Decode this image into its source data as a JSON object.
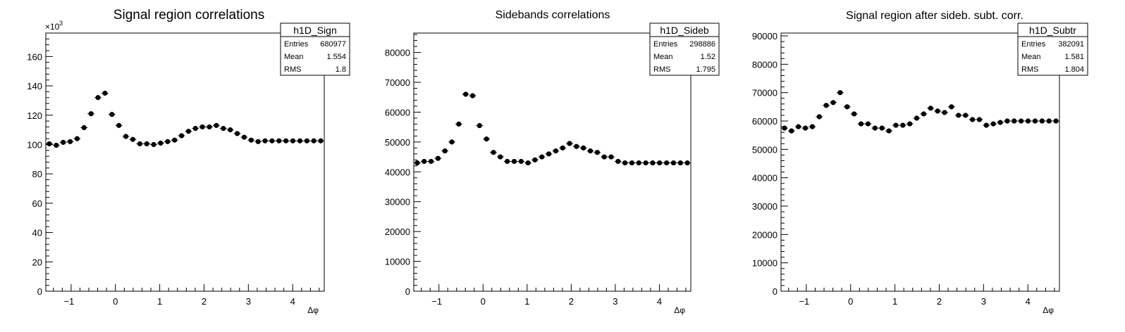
{
  "chart_data": [
    {
      "type": "scatter",
      "title": "Signal region correlations",
      "xlabel": "Δφ",
      "ylabel": "",
      "xlim": [
        -1.5708,
        4.7124
      ],
      "ylim": [
        0,
        176
      ],
      "y_exponent_label": "×10",
      "y_exponent": "3",
      "yticks": [
        0,
        20,
        40,
        60,
        80,
        100,
        120,
        140,
        160
      ],
      "xticks": [
        -1,
        0,
        1,
        2,
        3,
        4
      ],
      "grid": false,
      "stats": {
        "name": "h1D_Sign",
        "rows": [
          {
            "label": "Entries",
            "value": "680977"
          },
          {
            "label": "Mean",
            "value": "1.554"
          },
          {
            "label": "RMS",
            "value": "1.8"
          }
        ]
      },
      "series": [
        {
          "x": [
            -1.492,
            -1.335,
            -1.178,
            -1.021,
            -0.864,
            -0.707,
            -0.55,
            -0.393,
            -0.236,
            -0.079,
            0.079,
            0.236,
            0.393,
            0.55,
            0.707,
            0.864,
            1.021,
            1.178,
            1.335,
            1.492,
            1.649,
            1.806,
            1.963,
            2.12,
            2.277,
            2.435,
            2.592,
            2.749,
            2.906,
            3.063,
            3.22,
            3.377,
            3.534,
            3.691,
            3.848,
            4.005,
            4.163,
            4.32,
            4.477,
            4.634
          ],
          "values": [
            100.5,
            99.5,
            101.5,
            102,
            104,
            111.5,
            121,
            132,
            135,
            120.5,
            113,
            105.5,
            103.5,
            100.5,
            100.5,
            100,
            101,
            102,
            103,
            106,
            109,
            111,
            112,
            112,
            113,
            111,
            110,
            107.5,
            105,
            103,
            102,
            102.5,
            102.5,
            102.5,
            102.5,
            102.5,
            102.5,
            102.5,
            102.5,
            102.5
          ]
        }
      ]
    },
    {
      "type": "scatter",
      "title": "Sidebands correlations",
      "xlabel": "Δφ",
      "ylabel": "",
      "xlim": [
        -1.5708,
        4.7124
      ],
      "ylim": [
        0,
        86500
      ],
      "yticks": [
        0,
        10000,
        20000,
        30000,
        40000,
        50000,
        60000,
        70000,
        80000
      ],
      "xticks": [
        -1,
        0,
        1,
        2,
        3,
        4
      ],
      "grid": false,
      "stats": {
        "name": "h1D_Sideb",
        "rows": [
          {
            "label": "Entries",
            "value": "298886"
          },
          {
            "label": "Mean",
            "value": "1.52"
          },
          {
            "label": "RMS",
            "value": "1.795"
          }
        ]
      },
      "series": [
        {
          "x": [
            -1.492,
            -1.335,
            -1.178,
            -1.021,
            -0.864,
            -0.707,
            -0.55,
            -0.393,
            -0.236,
            -0.079,
            0.079,
            0.236,
            0.393,
            0.55,
            0.707,
            0.864,
            1.021,
            1.178,
            1.335,
            1.492,
            1.649,
            1.806,
            1.963,
            2.12,
            2.277,
            2.435,
            2.592,
            2.749,
            2.906,
            3.063,
            3.22,
            3.377,
            3.534,
            3.691,
            3.848,
            4.005,
            4.163,
            4.32,
            4.477,
            4.634
          ],
          "values": [
            43000,
            43500,
            43500,
            44500,
            47000,
            50000,
            56000,
            66000,
            65500,
            55500,
            51000,
            46500,
            45000,
            43500,
            43500,
            43500,
            43000,
            44000,
            45000,
            46000,
            47000,
            48000,
            49500,
            48500,
            48000,
            47000,
            46500,
            45000,
            45000,
            43500,
            43000,
            43000,
            43000,
            43000,
            43000,
            43000,
            43000,
            43000,
            43000,
            43000
          ]
        }
      ]
    },
    {
      "type": "scatter",
      "title": "Signal region after sideb. subt. corr.",
      "xlabel": "Δφ",
      "ylabel": "",
      "xlim": [
        -1.5708,
        4.7124
      ],
      "ylim": [
        0,
        91000
      ],
      "yticks": [
        0,
        10000,
        20000,
        30000,
        40000,
        50000,
        60000,
        70000,
        80000,
        90000
      ],
      "xticks": [
        -1,
        0,
        1,
        2,
        3,
        4
      ],
      "grid": false,
      "stats": {
        "name": "h1D_Subtr",
        "rows": [
          {
            "label": "Entries",
            "value": "382091"
          },
          {
            "label": "Mean",
            "value": "1.581"
          },
          {
            "label": "RMS",
            "value": "1.804"
          }
        ]
      },
      "series": [
        {
          "x": [
            -1.492,
            -1.335,
            -1.178,
            -1.021,
            -0.864,
            -0.707,
            -0.55,
            -0.393,
            -0.236,
            -0.079,
            0.079,
            0.236,
            0.393,
            0.55,
            0.707,
            0.864,
            1.021,
            1.178,
            1.335,
            1.492,
            1.649,
            1.806,
            1.963,
            2.12,
            2.277,
            2.435,
            2.592,
            2.749,
            2.906,
            3.063,
            3.22,
            3.377,
            3.534,
            3.691,
            3.848,
            4.005,
            4.163,
            4.32,
            4.477,
            4.634
          ],
          "values": [
            57500,
            56500,
            58000,
            57500,
            58000,
            61500,
            65500,
            66500,
            70000,
            65000,
            62500,
            59000,
            59000,
            57500,
            57500,
            56500,
            58500,
            58500,
            59000,
            61000,
            62500,
            64500,
            63500,
            63000,
            65000,
            62000,
            62000,
            60500,
            60500,
            58500,
            59000,
            59500,
            60000,
            60000,
            60000,
            60000,
            60000,
            60000,
            60000,
            60000
          ]
        }
      ]
    }
  ]
}
